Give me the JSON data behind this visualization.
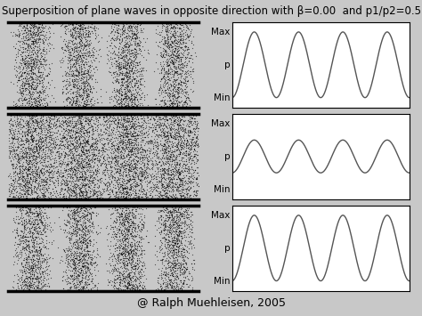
{
  "title": "Superposition of plane waves in opposite direction with β=0.00  and p1/p2=0.5",
  "footer": "@ Ralph Muehleisen, 2005",
  "background_color": "#c8c8c8",
  "plot_bg_color": "#ffffff",
  "noise_bg_color": "#c8c8c8",
  "wave_color": "#555555",
  "num_cycles": 4,
  "amplitudes": [
    1.0,
    0.5,
    1.0
  ],
  "stripe_amplitudes": [
    1.0,
    0.3,
    1.0
  ],
  "ytick_labels": [
    "Max",
    "p",
    "Min"
  ],
  "title_fontsize": 8.5,
  "footer_fontsize": 9,
  "label_fontsize": 7.5,
  "n_dots": 8000
}
